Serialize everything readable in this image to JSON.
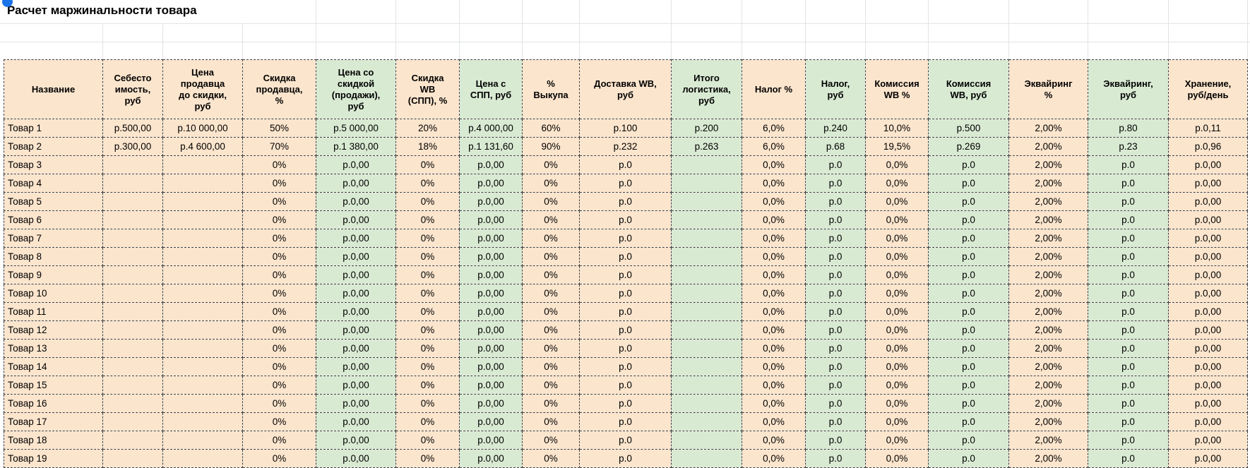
{
  "sheet": {
    "title": "Расчет маржинальности товара",
    "colors": {
      "cream": "#fce5cd",
      "green": "#d9ead3",
      "border_dashed": "#3f3f3f",
      "gridline": "#e2e3e3",
      "selection_dot": "#1a73e8"
    },
    "table": {
      "columns": [
        {
          "label": "Название",
          "tint": "cream"
        },
        {
          "label": "Себесто\nимость,\nруб",
          "tint": "cream"
        },
        {
          "label": "Цена\nпродавца\nдо скидки,\nруб",
          "tint": "cream"
        },
        {
          "label": "Скидка\nпродавца,\n%",
          "tint": "cream"
        },
        {
          "label": "Цена со\nскидкой\n(продажи),\nруб",
          "tint": "green"
        },
        {
          "label": "Скидка\nWB\n(СПП), %",
          "tint": "cream"
        },
        {
          "label": "Цена с\nСПП, руб",
          "tint": "green"
        },
        {
          "label": "%\nВыкупа",
          "tint": "cream"
        },
        {
          "label": "Доставка WB,\nруб",
          "tint": "cream"
        },
        {
          "label": "Итого\nлогистика,\nруб",
          "tint": "green"
        },
        {
          "label": "Налог %",
          "tint": "cream"
        },
        {
          "label": "Налог,\nруб",
          "tint": "green"
        },
        {
          "label": "Комиссия\nWB %",
          "tint": "cream"
        },
        {
          "label": "Комиссия\nWB, руб",
          "tint": "green"
        },
        {
          "label": "Эквайринг\n%",
          "tint": "cream"
        },
        {
          "label": "Эквайринг,\nруб",
          "tint": "green"
        },
        {
          "label": "Хранение,\nруб/день",
          "tint": "cream"
        }
      ],
      "rows": [
        [
          "Товар 1",
          "р.500,00",
          "р.10 000,00",
          "50%",
          "р.5 000,00",
          "20%",
          "р.4 000,00",
          "60%",
          "р.100",
          "р.200",
          "6,0%",
          "р.240",
          "10,0%",
          "р.500",
          "2,00%",
          "р.80",
          "р.0,11"
        ],
        [
          "Товар 2",
          "р.300,00",
          "р.4 600,00",
          "70%",
          "р.1 380,00",
          "18%",
          "р.1 131,60",
          "90%",
          "р.232",
          "р.263",
          "6,0%",
          "р.68",
          "19,5%",
          "р.269",
          "2,00%",
          "р.23",
          "р.0,96"
        ],
        [
          "Товар 3",
          "",
          "",
          "0%",
          "р.0,00",
          "0%",
          "р.0,00",
          "0%",
          "р.0",
          "",
          "0,0%",
          "р.0",
          "0,0%",
          "р.0",
          "2,00%",
          "р.0",
          "р.0,00"
        ],
        [
          "Товар 4",
          "",
          "",
          "0%",
          "р.0,00",
          "0%",
          "р.0,00",
          "0%",
          "р.0",
          "",
          "0,0%",
          "р.0",
          "0,0%",
          "р.0",
          "2,00%",
          "р.0",
          "р.0,00"
        ],
        [
          "Товар 5",
          "",
          "",
          "0%",
          "р.0,00",
          "0%",
          "р.0,00",
          "0%",
          "р.0",
          "",
          "0,0%",
          "р.0",
          "0,0%",
          "р.0",
          "2,00%",
          "р.0",
          "р.0,00"
        ],
        [
          "Товар 6",
          "",
          "",
          "0%",
          "р.0,00",
          "0%",
          "р.0,00",
          "0%",
          "р.0",
          "",
          "0,0%",
          "р.0",
          "0,0%",
          "р.0",
          "2,00%",
          "р.0",
          "р.0,00"
        ],
        [
          "Товар 7",
          "",
          "",
          "0%",
          "р.0,00",
          "0%",
          "р.0,00",
          "0%",
          "р.0",
          "",
          "0,0%",
          "р.0",
          "0,0%",
          "р.0",
          "2,00%",
          "р.0",
          "р.0,00"
        ],
        [
          "Товар 8",
          "",
          "",
          "0%",
          "р.0,00",
          "0%",
          "р.0,00",
          "0%",
          "р.0",
          "",
          "0,0%",
          "р.0",
          "0,0%",
          "р.0",
          "2,00%",
          "р.0",
          "р.0,00"
        ],
        [
          "Товар 9",
          "",
          "",
          "0%",
          "р.0,00",
          "0%",
          "р.0,00",
          "0%",
          "р.0",
          "",
          "0,0%",
          "р.0",
          "0,0%",
          "р.0",
          "2,00%",
          "р.0",
          "р.0,00"
        ],
        [
          "Товар 10",
          "",
          "",
          "0%",
          "р.0,00",
          "0%",
          "р.0,00",
          "0%",
          "р.0",
          "",
          "0,0%",
          "р.0",
          "0,0%",
          "р.0",
          "2,00%",
          "р.0",
          "р.0,00"
        ],
        [
          "Товар 11",
          "",
          "",
          "0%",
          "р.0,00",
          "0%",
          "р.0,00",
          "0%",
          "р.0",
          "",
          "0,0%",
          "р.0",
          "0,0%",
          "р.0",
          "2,00%",
          "р.0",
          "р.0,00"
        ],
        [
          "Товар 12",
          "",
          "",
          "0%",
          "р.0,00",
          "0%",
          "р.0,00",
          "0%",
          "р.0",
          "",
          "0,0%",
          "р.0",
          "0,0%",
          "р.0",
          "2,00%",
          "р.0",
          "р.0,00"
        ],
        [
          "Товар 13",
          "",
          "",
          "0%",
          "р.0,00",
          "0%",
          "р.0,00",
          "0%",
          "р.0",
          "",
          "0,0%",
          "р.0",
          "0,0%",
          "р.0",
          "2,00%",
          "р.0",
          "р.0,00"
        ],
        [
          "Товар 14",
          "",
          "",
          "0%",
          "р.0,00",
          "0%",
          "р.0,00",
          "0%",
          "р.0",
          "",
          "0,0%",
          "р.0",
          "0,0%",
          "р.0",
          "2,00%",
          "р.0",
          "р.0,00"
        ],
        [
          "Товар 15",
          "",
          "",
          "0%",
          "р.0,00",
          "0%",
          "р.0,00",
          "0%",
          "р.0",
          "",
          "0,0%",
          "р.0",
          "0,0%",
          "р.0",
          "2,00%",
          "р.0",
          "р.0,00"
        ],
        [
          "Товар 16",
          "",
          "",
          "0%",
          "р.0,00",
          "0%",
          "р.0,00",
          "0%",
          "р.0",
          "",
          "0,0%",
          "р.0",
          "0,0%",
          "р.0",
          "2,00%",
          "р.0",
          "р.0,00"
        ],
        [
          "Товар 17",
          "",
          "",
          "0%",
          "р.0,00",
          "0%",
          "р.0,00",
          "0%",
          "р.0",
          "",
          "0,0%",
          "р.0",
          "0,0%",
          "р.0",
          "2,00%",
          "р.0",
          "р.0,00"
        ],
        [
          "Товар 18",
          "",
          "",
          "0%",
          "р.0,00",
          "0%",
          "р.0,00",
          "0%",
          "р.0",
          "",
          "0,0%",
          "р.0",
          "0,0%",
          "р.0",
          "2,00%",
          "р.0",
          "р.0,00"
        ],
        [
          "Товар 19",
          "",
          "",
          "0%",
          "р.0,00",
          "0%",
          "р.0,00",
          "0%",
          "р.0",
          "",
          "0,0%",
          "р.0",
          "0,0%",
          "р.0",
          "2,00%",
          "р.0",
          "р.0,00"
        ]
      ]
    }
  }
}
